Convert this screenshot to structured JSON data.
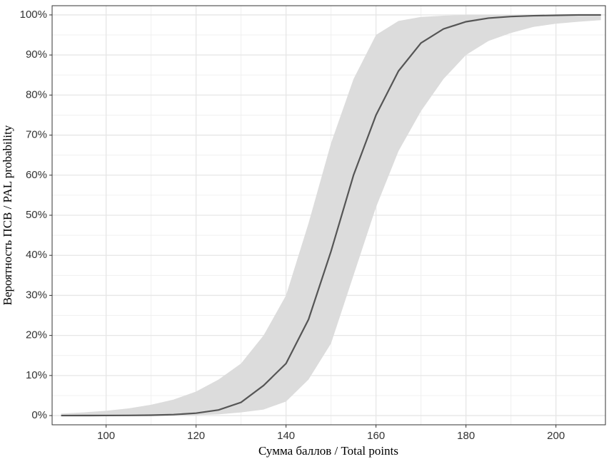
{
  "chart_data": {
    "type": "line",
    "x_label": "Сумма баллов / Total points",
    "y_label": "Вероятность ПСВ / PAL probability",
    "x": [
      90,
      95,
      100,
      105,
      110,
      115,
      120,
      125,
      130,
      135,
      140,
      145,
      150,
      155,
      160,
      165,
      170,
      175,
      180,
      185,
      190,
      195,
      200,
      205,
      210
    ],
    "series": [
      {
        "color": "#555555",
        "values": [
          0,
          0.01,
          0.02,
          0.05,
          0.1,
          0.25,
          0.6,
          1.4,
          3.3,
          7.5,
          13,
          24,
          41,
          60,
          75,
          86,
          93,
          96.5,
          98.3,
          99.2,
          99.6,
          99.8,
          99.9,
          100,
          100
        ]
      }
    ],
    "band": {
      "color": "#dcdcdc",
      "lower": [
        0,
        0,
        0,
        0.01,
        0.02,
        0.05,
        0.1,
        0.3,
        0.8,
        1.5,
        3.5,
        9,
        18,
        35,
        52,
        66,
        76,
        84,
        90,
        93.5,
        95.5,
        97,
        97.8,
        98.3,
        98.7
      ],
      "upper": [
        0.5,
        0.8,
        1.2,
        1.8,
        2.7,
        4,
        6,
        9,
        13,
        20,
        30,
        48,
        68,
        84,
        95,
        98.5,
        99.5,
        99.8,
        100,
        100,
        100,
        100,
        100,
        100,
        100
      ]
    },
    "xlim": [
      88,
      211
    ],
    "ylim": [
      -2.3,
      102.3
    ],
    "xticks": [
      100,
      120,
      140,
      160,
      180,
      200
    ],
    "yticks": [
      {
        "value": 0,
        "label": "0%"
      },
      {
        "value": 10,
        "label": "10%"
      },
      {
        "value": 20,
        "label": "20%"
      },
      {
        "value": 30,
        "label": "30%"
      },
      {
        "value": 40,
        "label": "40%"
      },
      {
        "value": 50,
        "label": "50%"
      },
      {
        "value": 60,
        "label": "60%"
      },
      {
        "value": 70,
        "label": "70%"
      },
      {
        "value": 80,
        "label": "80%"
      },
      {
        "value": 90,
        "label": "90%"
      },
      {
        "value": 100,
        "label": "100%"
      }
    ],
    "grid": true,
    "grid_minor": true
  }
}
